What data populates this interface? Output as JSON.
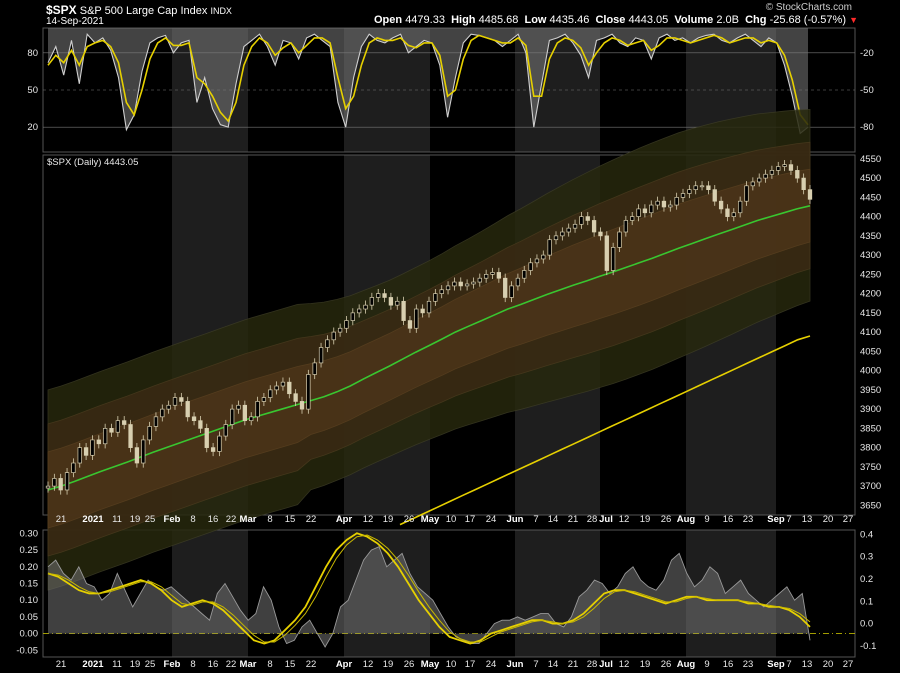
{
  "header": {
    "symbol": "$SPX",
    "name": "S&P 500 Large Cap Index",
    "exchange": "INDX",
    "date": "14-Sep-2021",
    "open_label": "Open",
    "open": "4479.33",
    "high_label": "High",
    "high": "4485.68",
    "low_label": "Low",
    "low": "4435.46",
    "close_label": "Close",
    "close": "4443.05",
    "volume_label": "Volume",
    "volume": "2.0B",
    "chg_label": "Chg",
    "chg": "-25.68 (-0.57%)",
    "watermark": "© StockCharts.com",
    "down_arrow": "down-triangle-icon",
    "down_color": "#ff2a2a"
  },
  "main_legend": "$SPX (Daily) 4443.05",
  "x_axis_labels": [
    "21",
    "2021",
    "11",
    "19",
    "25",
    "Feb",
    "8",
    "16",
    "22",
    "Mar",
    "8",
    "15",
    "22",
    "Apr",
    "12",
    "19",
    "26",
    "May",
    "10",
    "17",
    "24",
    "Jun",
    "7",
    "14",
    "21",
    "28",
    "Jul",
    "12",
    "19",
    "26",
    "Aug",
    "9",
    "16",
    "23",
    "Sep",
    "7",
    "13",
    "20",
    "27"
  ],
  "x_axis_bold": [
    "2021",
    "Feb",
    "Mar",
    "Apr",
    "May",
    "Jun",
    "Jul",
    "Aug",
    "Sep"
  ],
  "colors": {
    "price": "#d8cfb0",
    "sma50": "#39c630",
    "sma200": "#e6d000",
    "band": "#5a3a14",
    "signal": "#e6d000",
    "oscillator": "#cfcfcf"
  },
  "chart_data": [
    {
      "type": "line",
      "title": "",
      "left_ticks": [
        "80",
        "50",
        "20"
      ],
      "right_ticks": [
        "-20",
        "-50",
        "-80"
      ],
      "ylim": [
        0,
        100
      ],
      "series": [
        {
          "values": [
            72,
            85,
            62,
            90,
            55,
            95,
            88,
            92,
            82,
            60,
            18,
            30,
            65,
            88,
            92,
            94,
            80,
            88,
            90,
            40,
            60,
            35,
            22,
            20,
            55,
            85,
            90,
            95,
            85,
            70,
            90,
            88,
            75,
            92,
            95,
            90,
            85,
            40,
            20,
            60,
            85,
            95,
            90,
            88,
            92,
            95,
            80,
            85,
            90,
            88,
            70,
            28,
            60,
            88,
            95,
            94,
            92,
            90,
            85,
            90,
            95,
            80,
            20,
            55,
            90,
            92,
            95,
            88,
            78,
            60,
            90,
            92,
            95,
            88,
            85,
            92,
            90,
            75,
            92,
            95,
            90,
            92,
            88,
            92,
            94,
            95,
            90,
            88,
            92,
            95,
            90,
            85,
            92,
            88,
            70,
            45,
            15,
            20
          ]
        },
        {
          "values": [
            70,
            78,
            72,
            82,
            70,
            85,
            88,
            90,
            85,
            72,
            40,
            30,
            50,
            75,
            88,
            92,
            86,
            86,
            88,
            60,
            55,
            45,
            32,
            25,
            40,
            70,
            85,
            92,
            88,
            78,
            84,
            88,
            80,
            86,
            92,
            92,
            88,
            60,
            35,
            45,
            70,
            88,
            92,
            90,
            90,
            92,
            86,
            84,
            88,
            88,
            78,
            45,
            50,
            75,
            90,
            94,
            92,
            90,
            88,
            88,
            92,
            86,
            45,
            45,
            75,
            88,
            92,
            90,
            84,
            70,
            80,
            88,
            92,
            90,
            86,
            88,
            90,
            82,
            86,
            92,
            92,
            90,
            88,
            90,
            92,
            94,
            92,
            88,
            90,
            92,
            92,
            88,
            90,
            88,
            78,
            58,
            30,
            22
          ]
        }
      ]
    },
    {
      "type": "line",
      "title": "",
      "right_ticks": [
        "4550",
        "4500",
        "4450",
        "4400",
        "4350",
        "4300",
        "4250",
        "4200",
        "4150",
        "4100",
        "4050",
        "4000",
        "3950",
        "3900",
        "3850",
        "3800",
        "3750",
        "3700",
        "3650"
      ],
      "ylim": [
        3625,
        4560
      ],
      "series": [
        {
          "values": [
            3700,
            3720,
            3690,
            3735,
            3760,
            3800,
            3780,
            3820,
            3810,
            3850,
            3840,
            3870,
            3860,
            3800,
            3760,
            3820,
            3855,
            3880,
            3900,
            3910,
            3930,
            3920,
            3880,
            3870,
            3850,
            3800,
            3790,
            3830,
            3860,
            3900,
            3910,
            3870,
            3880,
            3920,
            3930,
            3950,
            3960,
            3970,
            3940,
            3920,
            3900,
            3990,
            4020,
            4060,
            4080,
            4100,
            4110,
            4130,
            4150,
            4160,
            4170,
            4190,
            4200,
            4190,
            4170,
            4180,
            4130,
            4110,
            4160,
            4150,
            4180,
            4200,
            4210,
            4220,
            4230,
            4220,
            4225,
            4230,
            4240,
            4250,
            4255,
            4240,
            4190,
            4220,
            4240,
            4260,
            4280,
            4290,
            4300,
            4340,
            4350,
            4360,
            4370,
            4380,
            4400,
            4390,
            4360,
            4350,
            4260,
            4320,
            4360,
            4390,
            4400,
            4420,
            4410,
            4430,
            4440,
            4425,
            4430,
            4450,
            4460,
            4470,
            4480,
            4480,
            4470,
            4440,
            4420,
            4400,
            4410,
            4440,
            4480,
            4490,
            4500,
            4510,
            4520,
            4530,
            4535,
            4520,
            4500,
            4470,
            4445
          ]
        },
        {
          "values": [
            3690,
            3700,
            3712,
            3725,
            3738,
            3750,
            3762,
            3775,
            3788,
            3800,
            3812,
            3824,
            3836,
            3848,
            3860,
            3872,
            3882,
            3892,
            3902,
            3912,
            3922,
            3932,
            3945,
            3960,
            3978,
            3995,
            4012,
            4030,
            4048,
            4065,
            4082,
            4100,
            4115,
            4130,
            4145,
            4160,
            4172,
            4185,
            4198,
            4210,
            4222,
            4233,
            4245,
            4256,
            4268,
            4280,
            4292,
            4305,
            4318,
            4330,
            4342,
            4354,
            4366,
            4378,
            4390,
            4400,
            4410,
            4420,
            4428
          ]
        },
        {
          "values": [
            3600,
            3615,
            3630,
            3645,
            3660,
            3675,
            3690,
            3705,
            3720,
            3735,
            3750,
            3765,
            3780,
            3795,
            3810,
            3825,
            3840,
            3855,
            3870,
            3885,
            3900,
            3915,
            3930,
            3945,
            3960,
            3975,
            3990,
            4005,
            4020,
            4035,
            4050,
            4065,
            4080,
            4090
          ]
        }
      ]
    },
    {
      "type": "area",
      "title": "",
      "left_ticks": [
        "0.30",
        "0.25",
        "0.20",
        "0.15",
        "0.10",
        "0.05",
        "0.00",
        "-0.05"
      ],
      "right_ticks": [
        "0.4",
        "0.3",
        "0.2",
        "0.1",
        "0.0",
        "-0.1"
      ],
      "ylim": [
        -0.07,
        0.31
      ],
      "series": [
        {
          "values": [
            0.2,
            0.22,
            0.18,
            0.16,
            0.2,
            0.15,
            0.14,
            0.1,
            0.12,
            0.18,
            0.13,
            0.08,
            0.12,
            0.16,
            0.14,
            0.13,
            0.14,
            0.12,
            0.1,
            0.08,
            0.06,
            0.04,
            0.12,
            0.15,
            0.11,
            0.07,
            0.04,
            0.06,
            0.14,
            0.1,
            0.02,
            -0.03,
            -0.02,
            0.02,
            0.04,
            0.0,
            -0.04,
            0.0,
            0.08,
            0.1,
            0.16,
            0.22,
            0.25,
            0.26,
            0.2,
            0.22,
            0.24,
            0.18,
            0.14,
            0.12,
            0.1,
            0.06,
            0.02,
            -0.01,
            -0.02,
            -0.03,
            -0.03,
            0.0,
            0.03,
            0.04,
            0.04,
            0.05,
            0.04,
            0.05,
            0.06,
            0.06,
            0.03,
            0.02,
            0.05,
            0.11,
            0.13,
            0.16,
            0.15,
            0.12,
            0.14,
            0.18,
            0.2,
            0.16,
            0.14,
            0.13,
            0.16,
            0.22,
            0.24,
            0.18,
            0.14,
            0.16,
            0.2,
            0.18,
            0.12,
            0.14,
            0.16,
            0.12,
            0.1,
            0.08,
            0.1,
            0.12,
            0.14,
            0.1,
            0.12,
            -0.02
          ]
        },
        {
          "values": [
            0.18,
            0.17,
            0.15,
            0.13,
            0.12,
            0.12,
            0.13,
            0.14,
            0.15,
            0.16,
            0.15,
            0.13,
            0.1,
            0.08,
            0.09,
            0.1,
            0.09,
            0.07,
            0.04,
            0.01,
            -0.02,
            -0.03,
            -0.02,
            0.01,
            0.04,
            0.08,
            0.14,
            0.2,
            0.25,
            0.28,
            0.3,
            0.29,
            0.27,
            0.24,
            0.2,
            0.15,
            0.1,
            0.06,
            0.02,
            -0.01,
            -0.02,
            -0.03,
            -0.02,
            0.0,
            0.01,
            0.02,
            0.03,
            0.04,
            0.04,
            0.03,
            0.03,
            0.04,
            0.06,
            0.09,
            0.12,
            0.13,
            0.13,
            0.12,
            0.11,
            0.1,
            0.09,
            0.1,
            0.11,
            0.11,
            0.1,
            0.1,
            0.1,
            0.1,
            0.09,
            0.09,
            0.08,
            0.08,
            0.07,
            0.05,
            0.02
          ]
        }
      ]
    }
  ]
}
